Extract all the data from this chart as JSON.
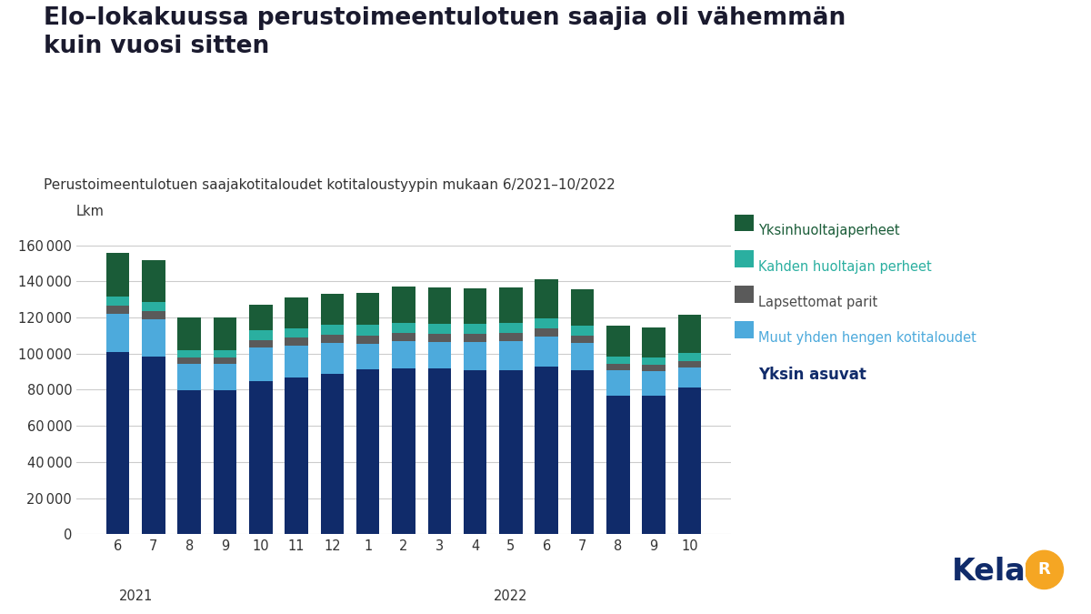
{
  "title": "Elo–lokakuussa perustoimeentulotuen saajia oli vähemmän\nkuin vuosi sitten",
  "subtitle": "Perustoimeentulotuen saajakotitaloudet kotitaloustyypin mukaan 6/2021–10/2022",
  "ylabel": "Lkm",
  "months": [
    "6",
    "7",
    "8",
    "9",
    "10",
    "11",
    "12",
    "1",
    "2",
    "3",
    "4",
    "5",
    "6",
    "7",
    "8",
    "9",
    "10"
  ],
  "yksin_asuvat": [
    101000,
    98500,
    79500,
    79500,
    85000,
    87000,
    89000,
    91500,
    92000,
    92000,
    91000,
    91000,
    93000,
    91000,
    76500,
    76500,
    81000
  ],
  "muut_yhden": [
    21000,
    20500,
    15000,
    15000,
    18500,
    17500,
    17000,
    14000,
    15000,
    14500,
    15500,
    16000,
    16500,
    15000,
    14500,
    14000,
    11500
  ],
  "lapsettomat_parit": [
    4500,
    4500,
    3500,
    3500,
    4000,
    4500,
    4500,
    4500,
    4500,
    4500,
    4500,
    4500,
    4500,
    4000,
    3500,
    3500,
    3500
  ],
  "kahden_huoltajan_perheet": [
    5000,
    5000,
    4000,
    4000,
    5500,
    5000,
    5500,
    6000,
    5500,
    5500,
    5500,
    5500,
    5500,
    5500,
    4000,
    4000,
    4500
  ],
  "yksinhuoltajaperheet": [
    24500,
    23000,
    18000,
    18000,
    14000,
    17000,
    17000,
    17500,
    20000,
    20000,
    19500,
    19500,
    21500,
    20000,
    17000,
    16500,
    21000
  ],
  "colors": {
    "yksin_asuvat": "#102B6A",
    "muut_yhden": "#4DAADC",
    "lapsettomat_parit": "#5A5A5A",
    "kahden_huoltajan_perheet": "#2AAFA0",
    "yksinhuoltajaperheet": "#1A5C38"
  },
  "legend_labels": {
    "yksinhuoltajaperheet": "Yksinhuoltajaperheet",
    "kahden_huoltajan_perheet": "Kahden huoltajan perheet",
    "lapsettomat_parit": "Lapsettomat parit",
    "muut_yhden": "Muut yhden hengen kotitaloudet",
    "yksin_asuvat": "Yksin asuvat"
  },
  "legend_text_colors": {
    "yksinhuoltajaperheet": "#1A5C38",
    "kahden_huoltajan_perheet": "#2AAFA0",
    "lapsettomat_parit": "#4A4A4A",
    "muut_yhden": "#4DAADC",
    "yksin_asuvat": "#102B6A"
  },
  "ylim": [
    0,
    170000
  ],
  "yticks": [
    0,
    20000,
    40000,
    60000,
    80000,
    100000,
    120000,
    140000,
    160000
  ],
  "background_color": "#FFFFFF",
  "grid_color": "#CCCCCC",
  "bar_width": 0.65
}
